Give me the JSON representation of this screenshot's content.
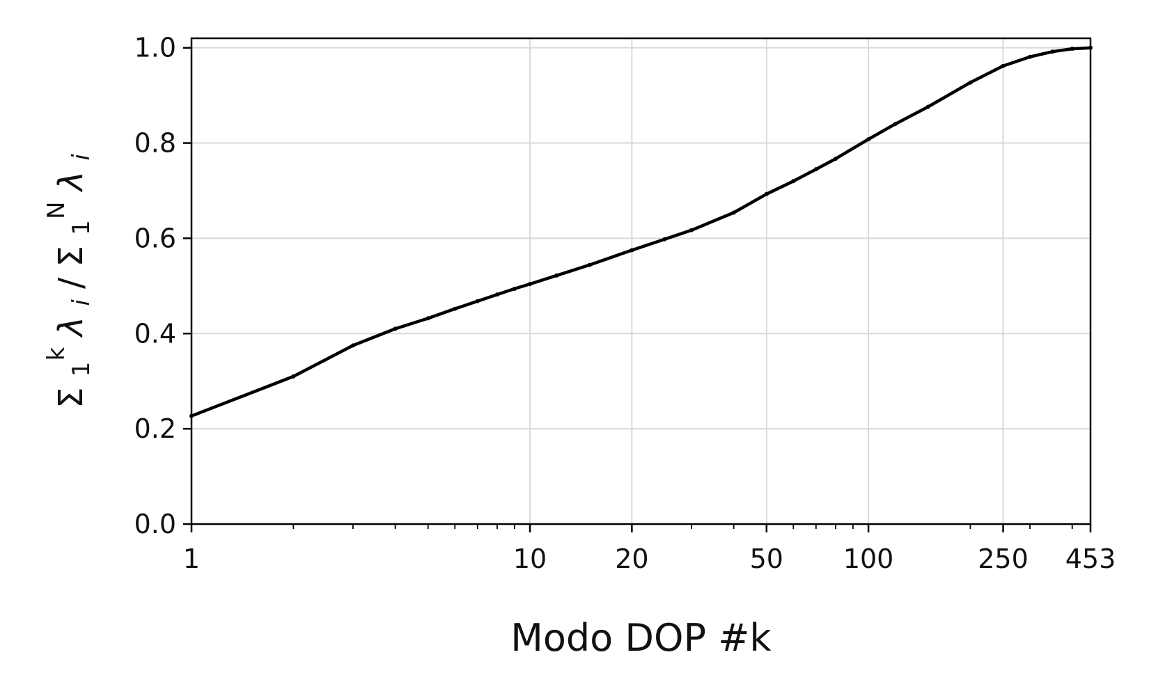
{
  "chart_data": {
    "type": "line",
    "title": "",
    "xlabel": "Modo DOP #k",
    "ylabel": {
      "prefix": "Σ",
      "sub1": "1",
      "sup1": "k",
      "lambda1": "λ",
      "i1": "i",
      "sep": " / Σ",
      "sub2": "1",
      "sup2": "N",
      "lambda2": "λ",
      "i2": "i"
    },
    "x_scale": "log",
    "xlim": [
      1,
      453
    ],
    "ylim": [
      0.0,
      1.02
    ],
    "x_ticks": [
      1,
      10,
      20,
      50,
      100,
      250,
      453
    ],
    "x_tick_labels": [
      "1",
      "10",
      "20",
      "50",
      "100",
      "250",
      "453"
    ],
    "y_ticks": [
      0.0,
      0.2,
      0.4,
      0.6,
      0.8,
      1.0
    ],
    "y_tick_labels": [
      "0.0",
      "0.2",
      "0.4",
      "0.6",
      "0.8",
      "1.0"
    ],
    "grid": true,
    "legend": "none",
    "line_color": "#000000",
    "grid_color": "#d9d9d9",
    "series": [
      {
        "x": [
          1,
          2,
          3,
          4,
          5,
          6,
          7,
          8,
          9,
          10,
          12,
          15,
          20,
          25,
          30,
          40,
          50,
          60,
          70,
          80,
          100,
          120,
          150,
          200,
          250,
          300,
          350,
          400,
          453
        ],
        "values": [
          0.227,
          0.31,
          0.375,
          0.41,
          0.432,
          0.452,
          0.468,
          0.482,
          0.494,
          0.504,
          0.522,
          0.544,
          0.575,
          0.598,
          0.617,
          0.654,
          0.693,
          0.72,
          0.745,
          0.767,
          0.808,
          0.84,
          0.876,
          0.927,
          0.962,
          0.981,
          0.992,
          0.998,
          1.0
        ]
      }
    ]
  }
}
